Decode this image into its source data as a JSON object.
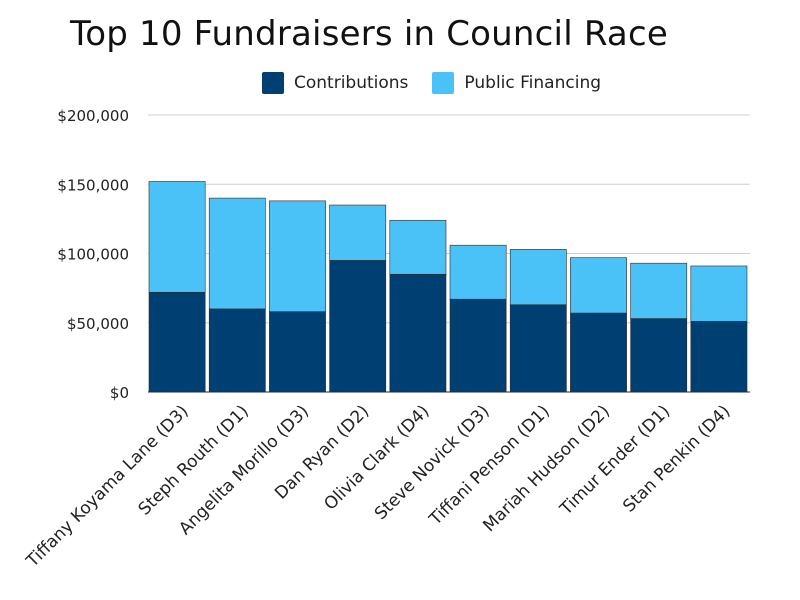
{
  "chart_data": {
    "type": "bar",
    "stacked": true,
    "title": "Top 10 Fundraisers in Council Race",
    "xlabel": "",
    "ylabel": "",
    "categories": [
      "Tiffany Koyama Lane (D3)",
      "Steph Routh (D1)",
      "Angelita Morillo (D3)",
      "Dan Ryan (D2)",
      "Olivia Clark (D4)",
      "Steve Novick (D3)",
      "Tiffani Penson (D1)",
      "Mariah Hudson (D2)",
      "Timur Ender (D1)",
      "Stan Penkin (D4)"
    ],
    "series": [
      {
        "name": "Contributions",
        "color": "#003f72",
        "values": [
          72000,
          60000,
          58000,
          95000,
          85000,
          67000,
          63000,
          57000,
          53000,
          51000
        ]
      },
      {
        "name": "Public Financing",
        "color": "#4ac1f7",
        "values": [
          80000,
          80000,
          80000,
          40000,
          39000,
          39000,
          40000,
          40000,
          40000,
          40000
        ]
      }
    ],
    "ylim": [
      0,
      200000
    ],
    "yticks": [
      0,
      50000,
      100000,
      150000,
      200000
    ],
    "ytick_labels": [
      "$0",
      "$50,000",
      "$100,000",
      "$150,000",
      "$200,000"
    ],
    "grid": true,
    "legend_position": "top"
  }
}
